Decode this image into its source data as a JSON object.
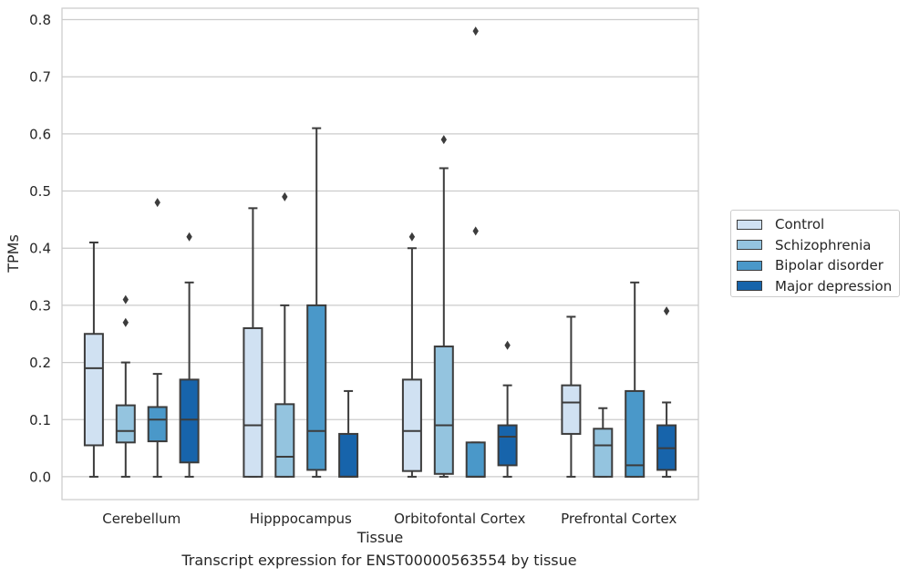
{
  "chart_data": {
    "type": "boxplot",
    "title": "Transcript expression for ENST00000563554 by tissue",
    "xlabel": "Tissue",
    "ylabel": "TPMs",
    "ylim": [
      -0.04,
      0.82
    ],
    "yticks": [
      "0.0",
      "0.1",
      "0.2",
      "0.3",
      "0.4",
      "0.5",
      "0.6",
      "0.7",
      "0.8"
    ],
    "grid": true,
    "legend_position": "right",
    "categories": [
      "Cerebellum",
      "Hipppocampus",
      "Orbitofontal Cortex",
      "Prefrontal Cortex"
    ],
    "series": [
      {
        "name": "Control",
        "color": "#d0e1f2",
        "boxes": [
          {
            "whislo": 0.0,
            "q1": 0.055,
            "med": 0.19,
            "q3": 0.25,
            "whishi": 0.41,
            "fliers": []
          },
          {
            "whislo": 0.0,
            "q1": 0.0,
            "med": 0.09,
            "q3": 0.26,
            "whishi": 0.47,
            "fliers": []
          },
          {
            "whislo": 0.0,
            "q1": 0.01,
            "med": 0.08,
            "q3": 0.17,
            "whishi": 0.4,
            "fliers": [
              0.42
            ]
          },
          {
            "whislo": 0.0,
            "q1": 0.075,
            "med": 0.13,
            "q3": 0.16,
            "whishi": 0.28,
            "fliers": []
          }
        ]
      },
      {
        "name": "Schizophrenia",
        "color": "#94c4df",
        "boxes": [
          {
            "whislo": 0.0,
            "q1": 0.06,
            "med": 0.08,
            "q3": 0.125,
            "whishi": 0.2,
            "fliers": [
              0.27,
              0.31
            ]
          },
          {
            "whislo": 0.0,
            "q1": 0.0,
            "med": 0.035,
            "q3": 0.127,
            "whishi": 0.3,
            "fliers": [
              0.49
            ]
          },
          {
            "whislo": 0.0,
            "q1": 0.005,
            "med": 0.09,
            "q3": 0.228,
            "whishi": 0.54,
            "fliers": [
              0.59
            ]
          },
          {
            "whislo": 0.0,
            "q1": 0.0,
            "med": 0.055,
            "q3": 0.084,
            "whishi": 0.12,
            "fliers": []
          }
        ]
      },
      {
        "name": "Bipolar disorder",
        "color": "#4a98c9",
        "boxes": [
          {
            "whislo": 0.0,
            "q1": 0.062,
            "med": 0.1,
            "q3": 0.122,
            "whishi": 0.18,
            "fliers": [
              0.48
            ]
          },
          {
            "whislo": 0.0,
            "q1": 0.012,
            "med": 0.08,
            "q3": 0.3,
            "whishi": 0.61,
            "fliers": []
          },
          {
            "whislo": 0.0,
            "q1": 0.0,
            "med": 0.0,
            "q3": 0.06,
            "whishi": 0.06,
            "fliers": [
              0.43,
              0.78
            ]
          },
          {
            "whislo": 0.0,
            "q1": 0.0,
            "med": 0.02,
            "q3": 0.15,
            "whishi": 0.34,
            "fliers": []
          }
        ]
      },
      {
        "name": "Major depression",
        "color": "#1764ab",
        "boxes": [
          {
            "whislo": 0.0,
            "q1": 0.025,
            "med": 0.1,
            "q3": 0.17,
            "whishi": 0.34,
            "fliers": [
              0.42
            ]
          },
          {
            "whislo": 0.0,
            "q1": 0.0,
            "med": 0.0,
            "q3": 0.075,
            "whishi": 0.15,
            "fliers": []
          },
          {
            "whislo": 0.0,
            "q1": 0.02,
            "med": 0.07,
            "q3": 0.09,
            "whishi": 0.16,
            "fliers": [
              0.23
            ]
          },
          {
            "whislo": 0.0,
            "q1": 0.012,
            "med": 0.05,
            "q3": 0.09,
            "whishi": 0.13,
            "fliers": [
              0.29
            ]
          }
        ]
      }
    ]
  }
}
